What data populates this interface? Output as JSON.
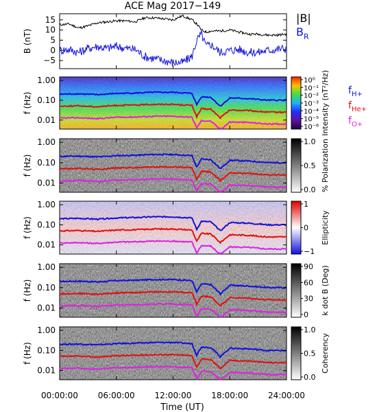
{
  "chart_data": [
    {
      "type": "line",
      "title": "ACE Mag 2017−149",
      "ylabel": "B (nT)",
      "ylim": [
        -9,
        18
      ],
      "y_ticks": [
        "15",
        "10",
        "5",
        "0",
        "−5"
      ],
      "y_tick_values": [
        15,
        10,
        5,
        0,
        -5
      ],
      "x": [
        0,
        1,
        2,
        3,
        4,
        5,
        6,
        7,
        8,
        9,
        10,
        11,
        12,
        13,
        14,
        14.5,
        15,
        15.5,
        16,
        17,
        18,
        19,
        20,
        21,
        22,
        23,
        24
      ],
      "series": [
        {
          "name": "|B|",
          "color": "#000000",
          "values": [
            12.5,
            13,
            11,
            12,
            13.5,
            14,
            14.5,
            14.5,
            14,
            16,
            16,
            15.5,
            15,
            17,
            15,
            13,
            10,
            9,
            9.5,
            9.5,
            10,
            9,
            8,
            8,
            7.5,
            7.5,
            8
          ]
        },
        {
          "name": "B",
          "sub": "R",
          "color": "#1010e0",
          "values": [
            0,
            0.5,
            -1,
            1,
            2,
            1,
            2,
            1,
            0.5,
            -3,
            -4,
            -5,
            -6,
            -6,
            -3,
            5,
            8,
            2,
            3,
            -1,
            0,
            0.5,
            -1,
            -1,
            0,
            0.5,
            1
          ]
        }
      ]
    },
    {
      "type": "heatmap",
      "ylabel": "f (Hz)",
      "y_ticks": [
        "1.00",
        "0.10",
        "0.01"
      ],
      "colorbar_label": "Intensity (nT²/Hz)",
      "colorbar_ticks": [
        "10⁰",
        "10⁻¹",
        "10⁻²",
        "10⁻³",
        "10⁻⁴",
        "10⁻⁵",
        "10⁻⁶"
      ],
      "colorbar_colors": [
        "#ff2000",
        "#ffc000",
        "#40e040",
        "#20b0ff",
        "#2030ff",
        "#6010a0",
        "#200040"
      ]
    },
    {
      "type": "heatmap",
      "ylabel": "f (Hz)",
      "y_ticks": [
        "1.00",
        "0.10",
        "0.01"
      ],
      "colorbar_label": "% Polarization",
      "colorbar_ticks": [
        "1.0",
        "0.5",
        "0.0"
      ],
      "colorbar_colors": [
        "#000000",
        "#ffffff"
      ]
    },
    {
      "type": "heatmap",
      "ylabel": "f (Hz)",
      "y_ticks": [
        "1.00",
        "0.10",
        "0.01"
      ],
      "colorbar_label": "Ellipticity",
      "colorbar_ticks": [
        "1",
        "0",
        "−1"
      ],
      "colorbar_colors": [
        "#e00000",
        "#ffffff",
        "#1010e0"
      ]
    },
    {
      "type": "heatmap",
      "ylabel": "f (Hz)",
      "y_ticks": [
        "1.00",
        "0.10",
        "0.01"
      ],
      "colorbar_label": "k dot B (Deg)",
      "colorbar_ticks": [
        "90",
        "60",
        "30",
        "0"
      ],
      "colorbar_colors": [
        "#000000",
        "#ffffff"
      ]
    },
    {
      "type": "heatmap",
      "ylabel": "f (Hz)",
      "y_ticks": [
        "1.00",
        "0.10",
        "0.01"
      ],
      "colorbar_label": "Coherency",
      "colorbar_ticks": [
        "1.0",
        "0.5",
        "0.0"
      ],
      "colorbar_colors": [
        "#000000",
        "#ffffff"
      ]
    }
  ],
  "gyrofrequency_lines": {
    "x": [
      0,
      2,
      4,
      6,
      8,
      10,
      12,
      14,
      14.5,
      15,
      16,
      17,
      18,
      20,
      22,
      24
    ],
    "series": [
      {
        "name": "f",
        "sub": "H+",
        "color": "#1010e0",
        "values": [
          0.2,
          0.21,
          0.19,
          0.22,
          0.23,
          0.25,
          0.25,
          0.22,
          0.06,
          0.15,
          0.14,
          0.05,
          0.13,
          0.12,
          0.1,
          0.1
        ]
      },
      {
        "name": "f",
        "sub": "He+",
        "color": "#e01010",
        "values": [
          0.05,
          0.052,
          0.047,
          0.055,
          0.057,
          0.062,
          0.062,
          0.055,
          0.015,
          0.037,
          0.035,
          0.013,
          0.032,
          0.03,
          0.025,
          0.025
        ]
      },
      {
        "name": "f",
        "sub": "O+",
        "color": "#e020e0",
        "values": [
          0.0125,
          0.013,
          0.0118,
          0.0138,
          0.0143,
          0.0155,
          0.0155,
          0.0138,
          0.004,
          0.0093,
          0.0088,
          0.0033,
          0.008,
          0.0075,
          0.0063,
          0.0063
        ]
      }
    ]
  },
  "x_axis": {
    "label": "Time (UT)",
    "tick_labels": [
      "00:00:00",
      "06:00:00",
      "12:00:00",
      "18:00:00",
      "24:00:00"
    ],
    "tick_values": [
      0,
      6,
      12,
      18,
      24
    ],
    "xlim": [
      0,
      24
    ]
  }
}
